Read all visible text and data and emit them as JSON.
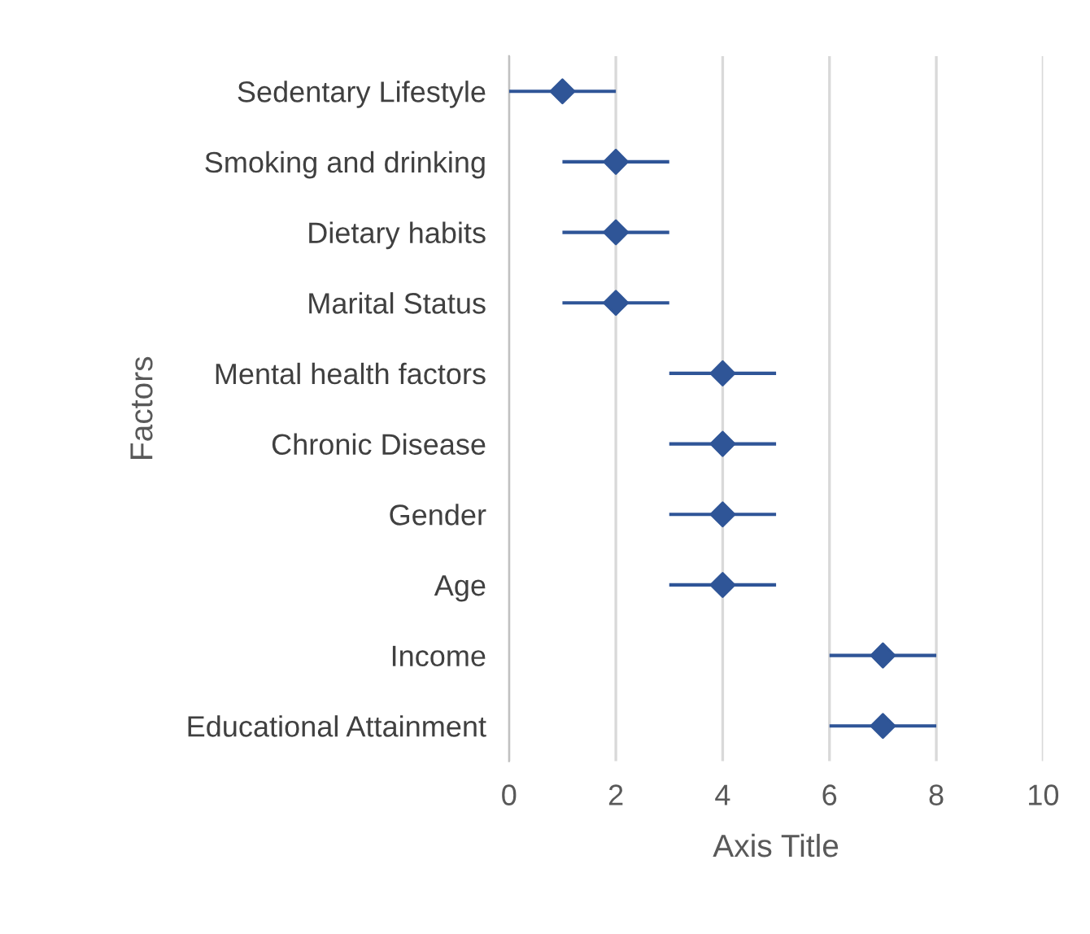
{
  "chart_data": {
    "type": "scatter",
    "orientation": "horizontal",
    "xlabel": "Axis Title",
    "ylabel": "Factors",
    "categories": [
      "Sedentary Lifestyle",
      "Smoking and drinking",
      "Dietary habits",
      "Marital Status",
      "Mental health factors",
      "Chronic Disease",
      "Gender",
      "Age",
      "Income",
      "Educational Attainment"
    ],
    "color": "#2f5597",
    "values": [
      1,
      2,
      2,
      2,
      4,
      4,
      4,
      4,
      7,
      7
    ],
    "errors": [
      1,
      1,
      1,
      1,
      1,
      1,
      1,
      1,
      1,
      1
    ],
    "xlim": [
      0,
      10
    ],
    "xticks": [
      0,
      2,
      4,
      6,
      8,
      10
    ],
    "grid": "x",
    "marker": "diamond",
    "legend": false
  }
}
